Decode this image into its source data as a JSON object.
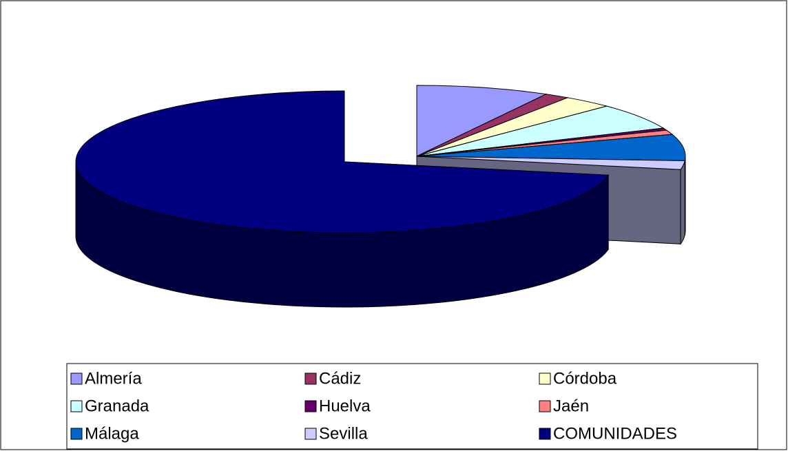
{
  "chart_data": {
    "type": "pie",
    "categories": [
      "Almería",
      "Cádiz",
      "Córdoba",
      "Granada",
      "Huelva",
      "Jaén",
      "Málaga",
      "Sevilla",
      "COMUNIDADES"
    ],
    "values": [
      8,
      1.5,
      3,
      6,
      0.5,
      1,
      6,
      2,
      72
    ],
    "colors": [
      "#9999ff",
      "#993366",
      "#ffffcc",
      "#ccffff",
      "#660066",
      "#ff8080",
      "#0066cc",
      "#ccccff",
      "#000080"
    ],
    "legend": "bottom"
  }
}
